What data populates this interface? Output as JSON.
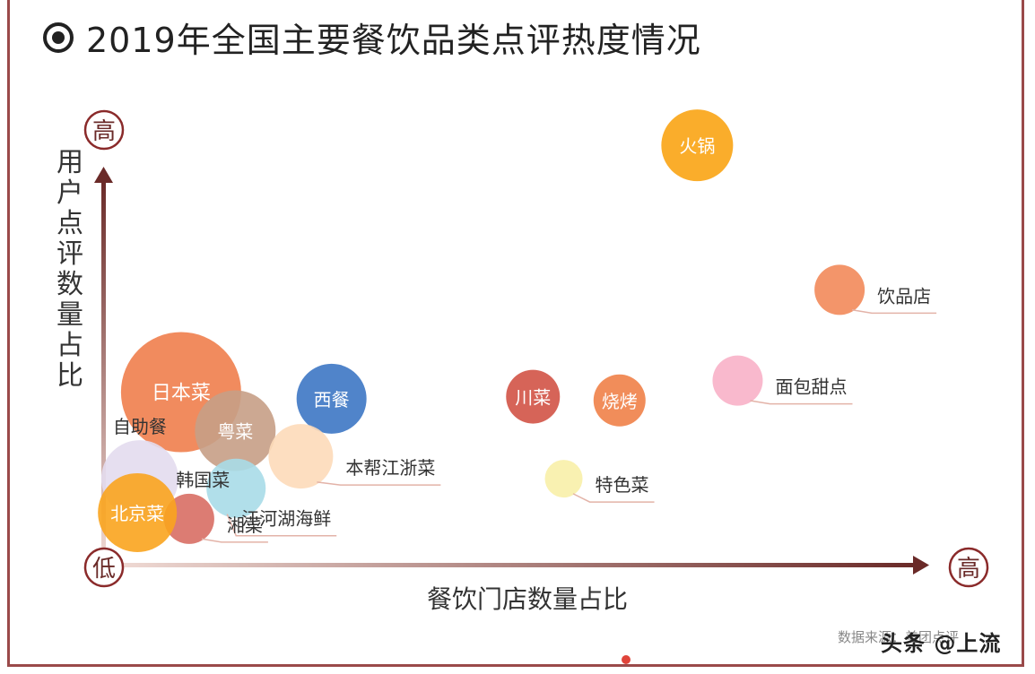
{
  "page": {
    "title": "2019年全国主要餐饮品类点评热度情况"
  },
  "chart_data": {
    "type": "scatter",
    "title": "2019年全国主要餐饮品类点评热度情况",
    "xlabel": "餐饮门店数量占比",
    "ylabel": "用户点评数量占比",
    "x_high_label": "高",
    "y_high_label": "高",
    "origin_label": "低",
    "xlim": [
      0,
      100
    ],
    "ylim": [
      0,
      100
    ],
    "grid": false,
    "legend": "none",
    "points": [
      {
        "label": "火锅",
        "x": 73.1,
        "y": 99.1,
        "r": 40,
        "color": "#f9a414",
        "label_pos": "inside"
      },
      {
        "label": "饮品店",
        "x": 90.7,
        "y": 64.2,
        "r": 28,
        "color": "#f2895a",
        "label_pos": "right"
      },
      {
        "label": "面包甜点",
        "x": 78.1,
        "y": 42.3,
        "r": 28,
        "color": "#f8b1c8",
        "label_pos": "right"
      },
      {
        "label": "川菜",
        "x": 52.8,
        "y": 38.4,
        "r": 30,
        "color": "#d25346",
        "label_pos": "inside"
      },
      {
        "label": "烧烤",
        "x": 63.5,
        "y": 37.5,
        "r": 29,
        "color": "#f08148",
        "label_pos": "inside"
      },
      {
        "label": "特色菜",
        "x": 56.6,
        "y": 18.6,
        "r": 21,
        "color": "#f8f0a8",
        "label_pos": "right"
      },
      {
        "label": "西餐",
        "x": 27.9,
        "y": 37.9,
        "r": 39,
        "color": "#3d77c4",
        "label_pos": "inside"
      },
      {
        "label": "日本菜",
        "x": 9.3,
        "y": 39.5,
        "r": 67,
        "color": "#f07e4d",
        "label_pos": "inside"
      },
      {
        "label": "粤菜",
        "x": 16.0,
        "y": 30.2,
        "r": 45,
        "color": "#c79e86",
        "label_pos": "inside"
      },
      {
        "label": "本帮江浙菜",
        "x": 24.1,
        "y": 24.0,
        "r": 36,
        "color": "#fddab9",
        "label_pos": "right"
      },
      {
        "label": "自助餐",
        "x": 4.2,
        "y": 18.6,
        "r": 43,
        "color": "#e3dcee",
        "label_pos": "top-right"
      },
      {
        "label": "韩国菜",
        "x": 16.1,
        "y": 16.3,
        "r": 33,
        "color": "#a8dce8",
        "label_pos": "top-left"
      },
      {
        "label": "江河湖海鲜",
        "x": 16.1,
        "y": 16.3,
        "r": 33,
        "color": "#a8dce8",
        "label_pos": "bottom-right",
        "hide_circle": true
      },
      {
        "label": "湘菜",
        "x": 10.3,
        "y": 8.9,
        "r": 28,
        "color": "#d86e64",
        "label_pos": "right"
      },
      {
        "label": "北京菜",
        "x": 3.9,
        "y": 10.4,
        "r": 44,
        "color": "#f9a41e",
        "label_pos": "inside"
      }
    ],
    "colors": {
      "axis": "#6a2a28",
      "badge_border": "#8a2a2a",
      "label_line": "#e3b3a8"
    }
  },
  "footer": {
    "source": "数据来源：美团点评",
    "watermark": "头条 @上流"
  }
}
